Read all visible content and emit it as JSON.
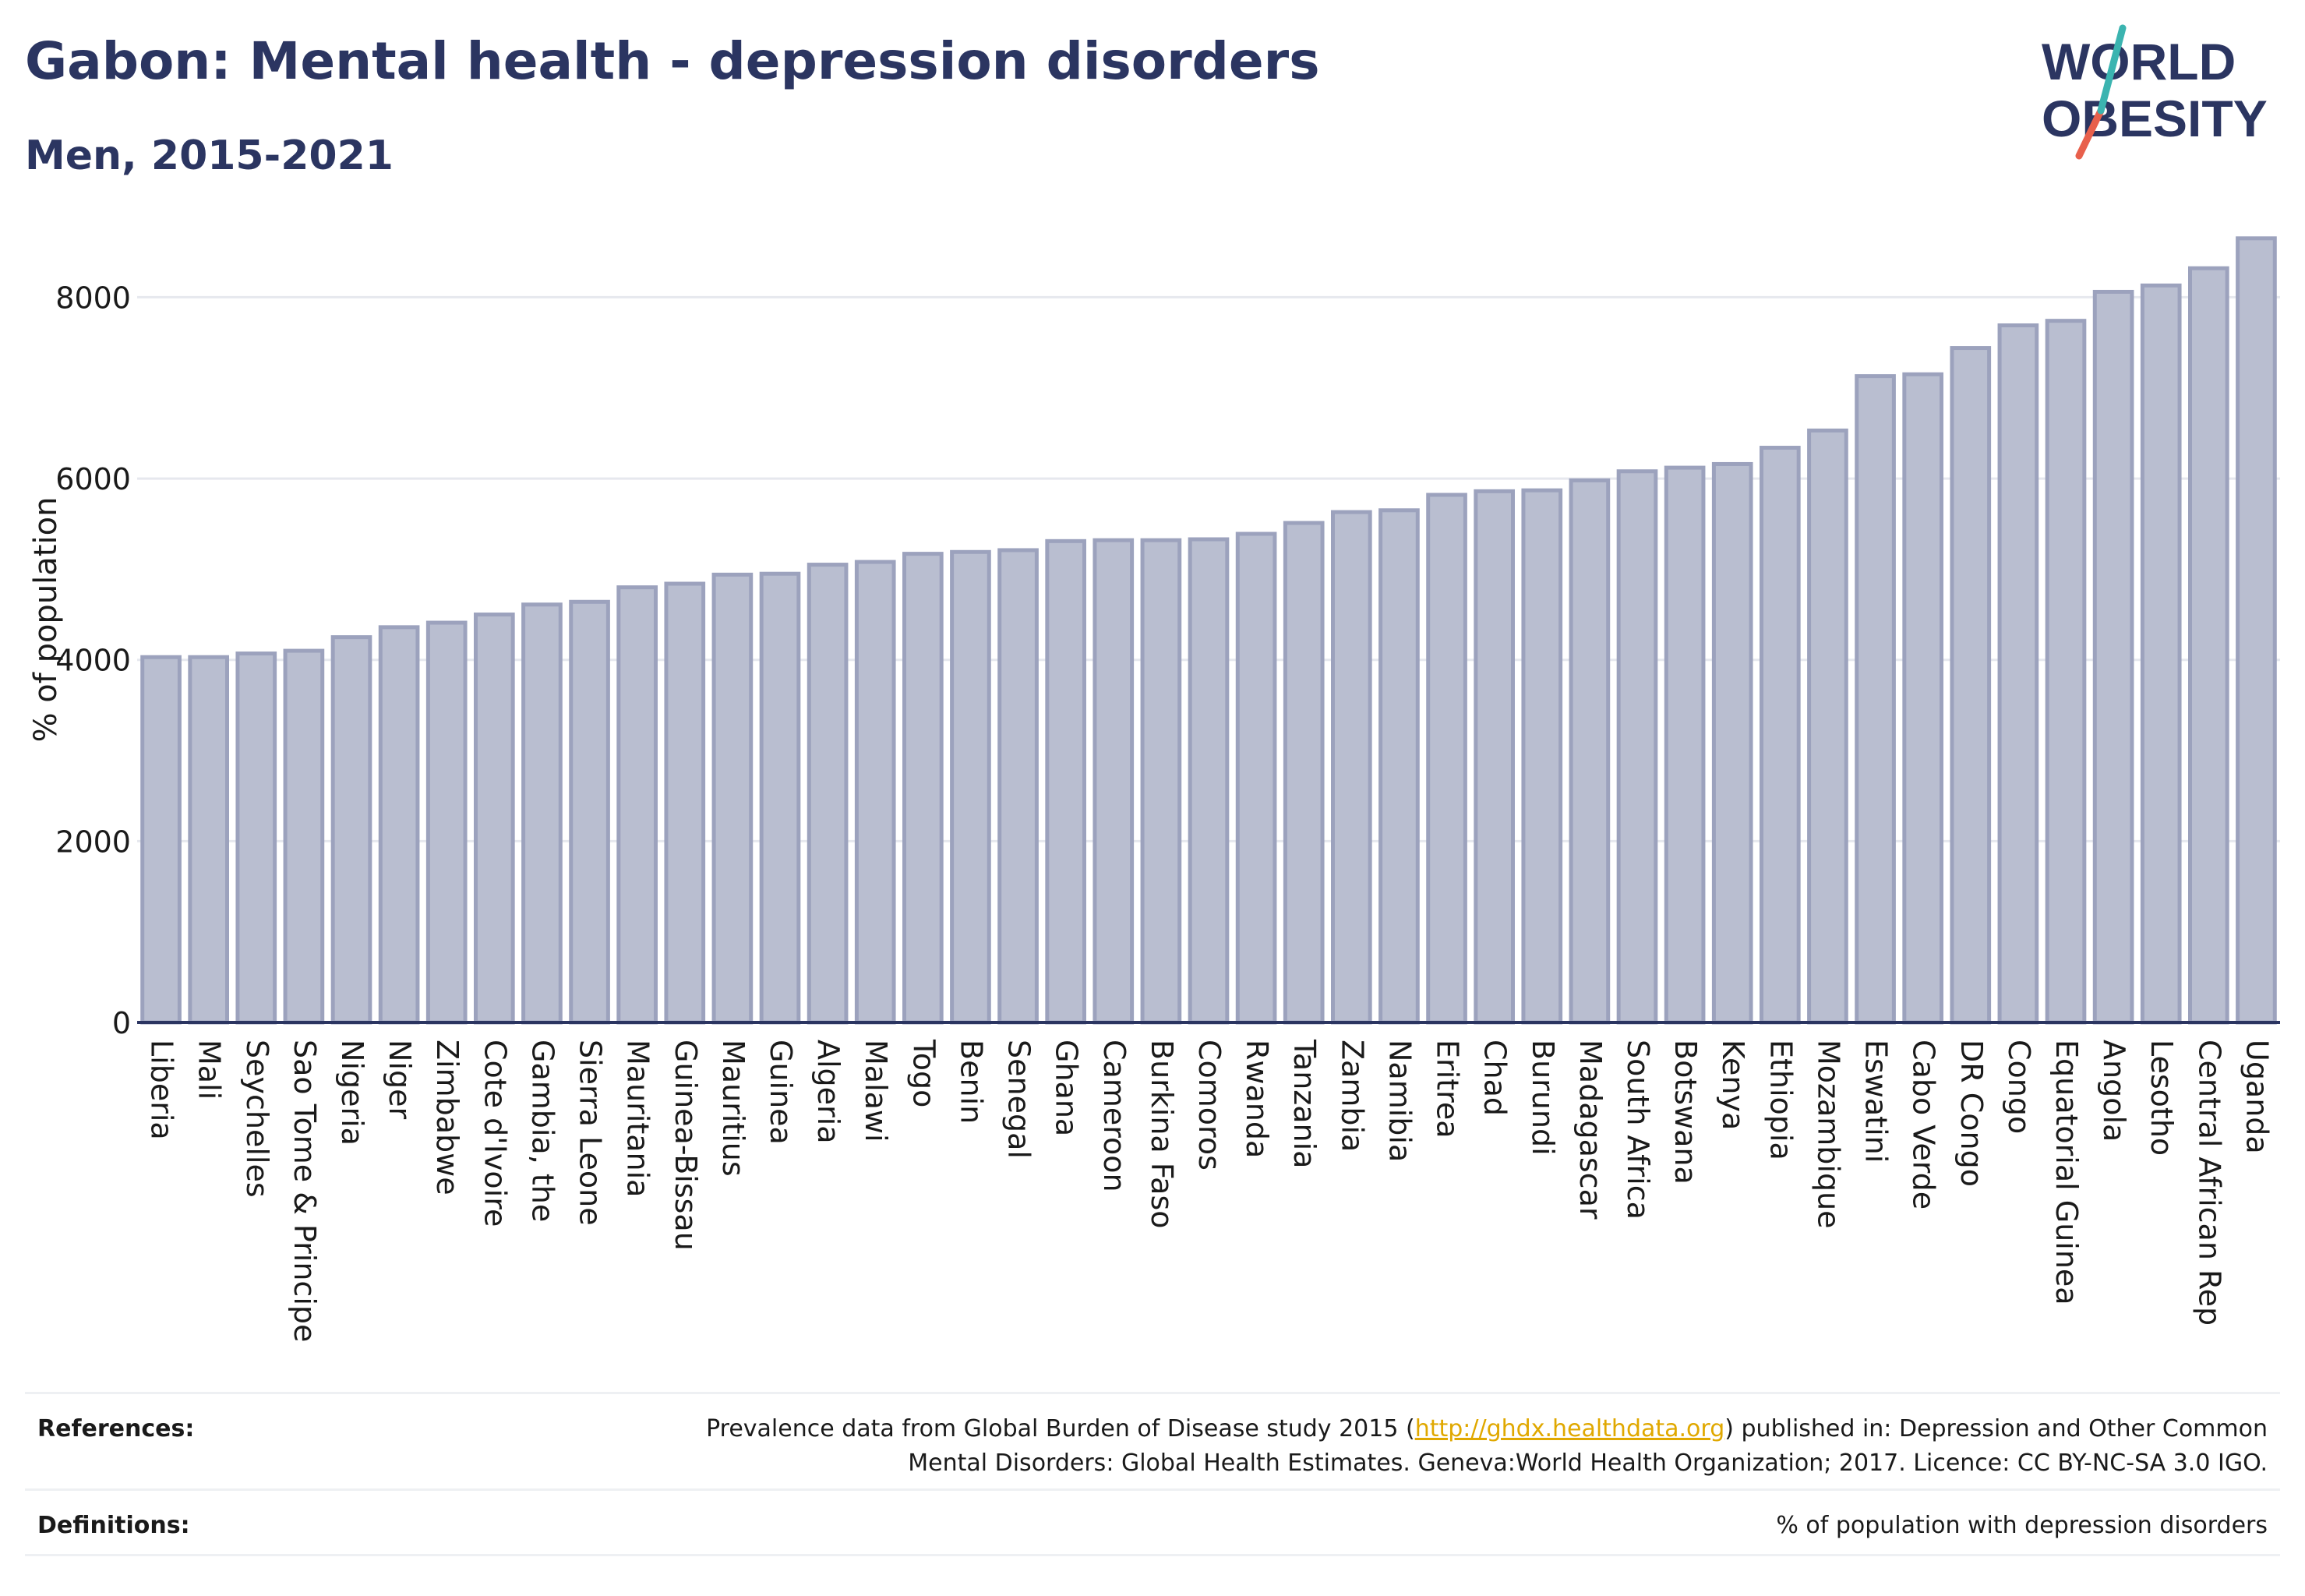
{
  "header": {
    "title": "Gabon: Mental health - depression disorders",
    "subtitle": "Men, 2015-2021"
  },
  "logo": {
    "line1": "WORLD",
    "line2": "OBESITY",
    "colors": {
      "text": "#2b3561",
      "teal": "#3bb4b0",
      "coral": "#e8604c"
    }
  },
  "chart_data": {
    "type": "bar",
    "ylabel": "% of population",
    "ylim": [
      0,
      8700
    ],
    "yticks": [
      0,
      2000,
      4000,
      6000,
      8000
    ],
    "grid": true,
    "bar_color": "#b9bed0",
    "bar_edge": "#9ca2bd",
    "categories": [
      "Liberia",
      "Mali",
      "Seychelles",
      "Sao Tome & Principe",
      "Nigeria",
      "Niger",
      "Zimbabwe",
      "Cote d'Ivoire",
      "Gambia, the",
      "Sierra Leone",
      "Mauritania",
      "Guinea-Bissau",
      "Mauritius",
      "Guinea",
      "Algeria",
      "Malawi",
      "Togo",
      "Benin",
      "Senegal",
      "Ghana",
      "Cameroon",
      "Burkina Faso",
      "Comoros",
      "Rwanda",
      "Tanzania",
      "Zambia",
      "Namibia",
      "Eritrea",
      "Chad",
      "Burundi",
      "Madagascar",
      "South Africa",
      "Botswana",
      "Kenya",
      "Ethiopia",
      "Mozambique",
      "Eswatini",
      "Cabo Verde",
      "DR Congo",
      "Congo",
      "Equatorial Guinea",
      "Angola",
      "Lesotho",
      "Central African Rep",
      "Uganda"
    ],
    "values": [
      4030,
      4030,
      4070,
      4100,
      4250,
      4360,
      4410,
      4500,
      4610,
      4640,
      4800,
      4840,
      4940,
      4950,
      5050,
      5080,
      5170,
      5190,
      5210,
      5310,
      5320,
      5320,
      5330,
      5390,
      5510,
      5630,
      5650,
      5820,
      5860,
      5870,
      5980,
      6080,
      6120,
      6160,
      6340,
      6530,
      7130,
      7150,
      7440,
      7690,
      7740,
      8060,
      8130,
      8320,
      8650
    ]
  },
  "footer": {
    "references_label": "References:",
    "references_text_1": "Prevalence data from Global Burden of Disease study 2015 (",
    "references_link": "http://ghdx.healthdata.org",
    "references_text_2": ") published in: Depression and Other Common",
    "references_text_3": "Mental Disorders: Global Health Estimates. Geneva:World Health Organization; 2017. Licence: CC BY-NC-SA 3.0 IGO.",
    "definitions_label": "Definitions:",
    "definitions_text": "% of population with depression disorders"
  }
}
